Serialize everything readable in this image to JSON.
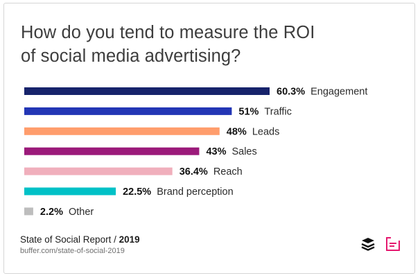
{
  "title_line1": "How do you tend to measure the ROI",
  "title_line2": "of social media advertising?",
  "footer": {
    "report": "State of Social Report / ",
    "year": "2019",
    "url": "buffer.com/state-of-social-2019"
  },
  "icons": {
    "left_logo": "buffer-logo-icon",
    "right_logo": "report-logo-icon"
  },
  "colors": {
    "title_text": "#3d3d3d",
    "value_text": "#111111",
    "label_text": "#2b2b2b",
    "report_pink": "#e5186f"
  },
  "chart_data": {
    "type": "bar",
    "orientation": "horizontal",
    "categories": [
      "Engagement",
      "Traffic",
      "Leads",
      "Sales",
      "Reach",
      "Brand perception",
      "Other"
    ],
    "values": [
      60.3,
      51,
      48,
      43,
      36.4,
      22.5,
      2.2
    ],
    "value_labels": [
      "60.3%",
      "51%",
      "48%",
      "43%",
      "36.4%",
      "22.5%",
      "2.2%"
    ],
    "colors": [
      "#17236b",
      "#2336b5",
      "#ff9d6c",
      "#9b1a7a",
      "#f0afbc",
      "#00c1c7",
      "#bdbdbd"
    ],
    "unit": "%",
    "xlim": [
      0,
      60.3
    ],
    "grid": false,
    "legend": "none"
  }
}
